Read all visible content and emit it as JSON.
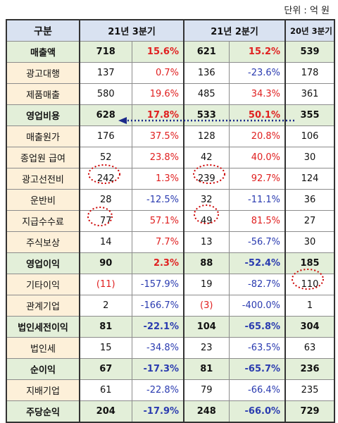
{
  "unit_label": "단위 : 억 원",
  "headers": {
    "item": "구분",
    "q3_21": "21년 3분기",
    "q2_21": "21년 2분기",
    "q3_20": "20년 3분기"
  },
  "colors": {
    "red": "#e02020",
    "blue": "#2a3bb0",
    "annotation": "#cc0000",
    "arrow": "#1b2a8a"
  },
  "rows": [
    {
      "item": "매출액",
      "v21q3": "718",
      "p21q3": "15.6%",
      "v21q2": "621",
      "p21q2": "15.2%",
      "v20q3": "539",
      "bold": true
    },
    {
      "item": "광고대행",
      "v21q3": "137",
      "p21q3": "0.7%",
      "v21q2": "136",
      "p21q2": "-23.6%",
      "v20q3": "178",
      "bold": false
    },
    {
      "item": "제품매출",
      "v21q3": "580",
      "p21q3": "19.6%",
      "v21q2": "485",
      "p21q2": "34.3%",
      "v20q3": "361",
      "bold": false
    },
    {
      "item": "영업비용",
      "v21q3": "628",
      "p21q3": "17.8%",
      "v21q2": "533",
      "p21q2": "50.1%",
      "v20q3": "355",
      "bold": true
    },
    {
      "item": "매출원가",
      "v21q3": "176",
      "p21q3": "37.5%",
      "v21q2": "128",
      "p21q2": "20.8%",
      "v20q3": "106",
      "bold": false
    },
    {
      "item": "종업원 급여",
      "v21q3": "52",
      "p21q3": "23.8%",
      "v21q2": "42",
      "p21q2": "40.0%",
      "v20q3": "30",
      "bold": false
    },
    {
      "item": "광고선전비",
      "v21q3": "242",
      "p21q3": "1.3%",
      "v21q2": "239",
      "p21q2": "92.7%",
      "v20q3": "124",
      "bold": false
    },
    {
      "item": "운반비",
      "v21q3": "28",
      "p21q3": "-12.5%",
      "v21q2": "32",
      "p21q2": "-11.1%",
      "v20q3": "36",
      "bold": false
    },
    {
      "item": "지급수수료",
      "v21q3": "77",
      "p21q3": "57.1%",
      "v21q2": "49",
      "p21q2": "81.5%",
      "v20q3": "27",
      "bold": false
    },
    {
      "item": "주식보상",
      "v21q3": "14",
      "p21q3": "7.7%",
      "v21q2": "13",
      "p21q2": "-56.7%",
      "v20q3": "30",
      "bold": false
    },
    {
      "item": "영업이익",
      "v21q3": "90",
      "p21q3": "2.3%",
      "v21q2": "88",
      "p21q2": "-52.4%",
      "v20q3": "185",
      "bold": true
    },
    {
      "item": "기타이익",
      "v21q3": "(11)",
      "p21q3": "-157.9%",
      "v21q2": "19",
      "p21q2": "-82.7%",
      "v20q3": "110",
      "bold": false
    },
    {
      "item": "관계기업",
      "v21q3": "2",
      "p21q3": "-166.7%",
      "v21q2": "(3)",
      "p21q2": "-400.0%",
      "v20q3": "1",
      "bold": false
    },
    {
      "item": "법인세전이익",
      "v21q3": "81",
      "p21q3": "-22.1%",
      "v21q2": "104",
      "p21q2": "-65.8%",
      "v20q3": "304",
      "bold": true
    },
    {
      "item": "법인세",
      "v21q3": "15",
      "p21q3": "-34.8%",
      "v21q2": "23",
      "p21q2": "-63.5%",
      "v20q3": "63",
      "bold": false
    },
    {
      "item": "순이익",
      "v21q3": "67",
      "p21q3": "-17.3%",
      "v21q2": "81",
      "p21q2": "-65.7%",
      "v20q3": "236",
      "bold": true
    },
    {
      "item": "지배기업",
      "v21q3": "61",
      "p21q3": "-22.8%",
      "v21q2": "79",
      "p21q2": "-66.4%",
      "v20q3": "235",
      "bold": false
    },
    {
      "item": "주당순익",
      "v21q3": "204",
      "p21q3": "-17.9%",
      "v21q2": "248",
      "p21q2": "-66.0%",
      "v20q3": "729",
      "bold": true
    }
  ]
}
